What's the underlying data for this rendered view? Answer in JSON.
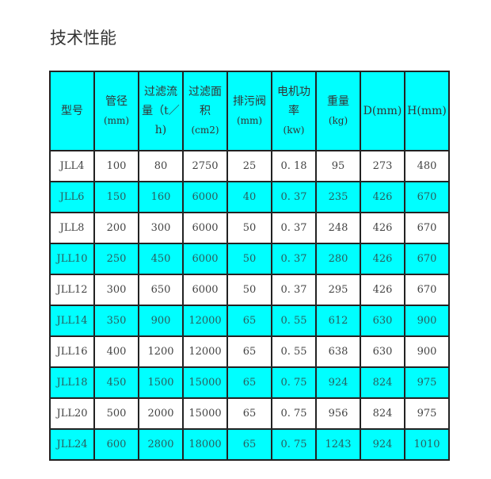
{
  "title": "技术性能",
  "colors": {
    "header_bg": "#00ffff",
    "alt_row_bg": "#00ffff",
    "row_bg": "#ffffff",
    "border": "#222222"
  },
  "table": {
    "headers": [
      [
        "型号"
      ],
      [
        "管径",
        "(mm)"
      ],
      [
        "过滤流",
        "量（t／",
        "h)"
      ],
      [
        "过滤面",
        "积",
        "(cm2)"
      ],
      [
        "排污阀",
        "(mm)"
      ],
      [
        "电机功",
        "率",
        "(kw)"
      ],
      [
        "重量",
        "(kg)"
      ],
      [
        "D(mm)"
      ],
      [
        "H(mm)"
      ]
    ],
    "rows": [
      [
        "JLL4",
        "100",
        "80",
        "2750",
        "25",
        "0. 18",
        "95",
        "273",
        "480"
      ],
      [
        "JLL6",
        "150",
        "160",
        "6000",
        "40",
        "0. 37",
        "235",
        "426",
        "670"
      ],
      [
        "JLL8",
        "200",
        "300",
        "6000",
        "50",
        "0. 37",
        "248",
        "426",
        "670"
      ],
      [
        "JLL10",
        "250",
        "450",
        "6000",
        "50",
        "0. 37",
        "280",
        "426",
        "670"
      ],
      [
        "JLL12",
        "300",
        "650",
        "6000",
        "50",
        "0. 37",
        "295",
        "426",
        "670"
      ],
      [
        "JLL14",
        "350",
        "900",
        "12000",
        "65",
        "0. 55",
        "612",
        "630",
        "900"
      ],
      [
        "JLL16",
        "400",
        "1200",
        "12000",
        "65",
        "0. 55",
        "638",
        "630",
        "900"
      ],
      [
        "JLL18",
        "450",
        "1500",
        "15000",
        "65",
        "0. 75",
        "924",
        "824",
        "975"
      ],
      [
        "JLL20",
        "500",
        "2000",
        "15000",
        "65",
        "0. 75",
        "956",
        "824",
        "975"
      ],
      [
        "JLL24",
        "600",
        "2800",
        "18000",
        "65",
        "0. 75",
        "1243",
        "924",
        "1010"
      ]
    ]
  }
}
